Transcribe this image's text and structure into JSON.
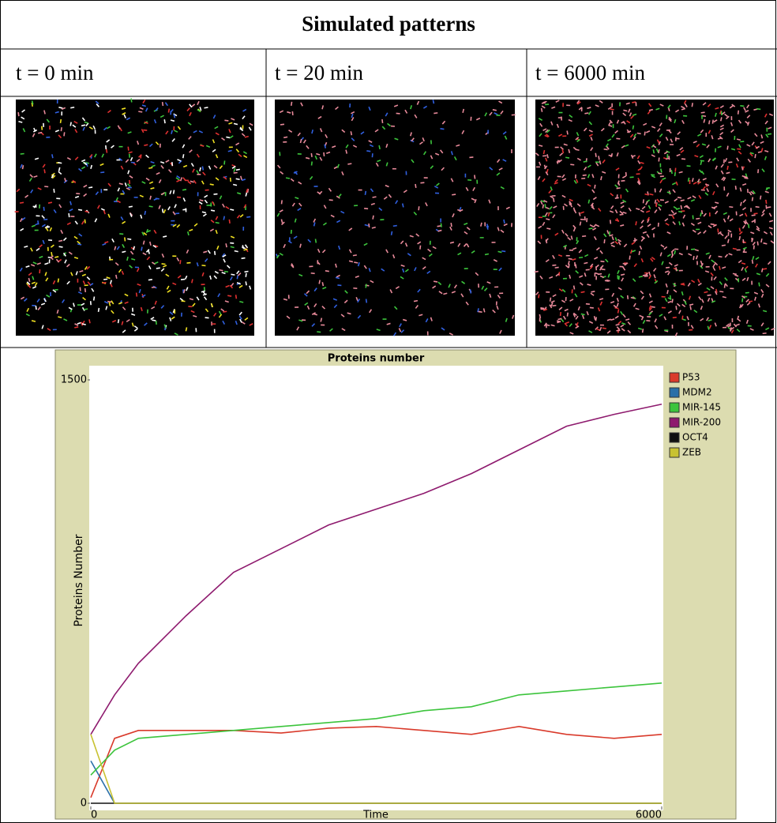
{
  "header": {
    "title": "Simulated patterns"
  },
  "columns": [
    "t = 0 min",
    "t = 20 min",
    "t = 6000 min"
  ],
  "chart_data": {
    "type": "line",
    "title": "Proteins number",
    "x_label": "Time",
    "y_label": "Proteins Number",
    "x": [
      0,
      250,
      500,
      1000,
      1500,
      2000,
      2500,
      3000,
      3500,
      4000,
      4500,
      5000,
      5500,
      6000
    ],
    "series": [
      {
        "name": "P53",
        "color": "#d93a2b",
        "values": [
          20,
          230,
          258,
          258,
          258,
          249,
          266,
          272,
          258,
          244,
          272,
          244,
          230,
          244
        ]
      },
      {
        "name": "MDM2",
        "color": "#2a6fa8",
        "values": [
          150,
          0,
          0,
          0,
          0,
          0,
          0,
          0,
          0,
          0,
          0,
          0,
          0,
          0
        ]
      },
      {
        "name": "MIR-145",
        "color": "#3cc43c",
        "values": [
          100,
          188,
          230,
          244,
          258,
          272,
          286,
          300,
          328,
          342,
          384,
          398,
          412,
          426
        ]
      },
      {
        "name": "MIR-200",
        "color": "#8e1a6e",
        "values": [
          244,
          384,
          496,
          664,
          818,
          902,
          986,
          1042,
          1098,
          1168,
          1252,
          1336,
          1378,
          1414
        ]
      },
      {
        "name": "OCT4",
        "color": "#111111",
        "values": [
          0,
          0,
          0,
          0,
          0,
          0,
          0,
          0,
          0,
          0,
          0,
          0,
          0,
          0
        ]
      },
      {
        "name": "ZEB",
        "color": "#c8c232",
        "values": [
          244,
          0,
          0,
          0,
          0,
          0,
          0,
          0,
          0,
          0,
          0,
          0,
          0,
          0
        ]
      }
    ],
    "xlim": [
      0,
      6000
    ],
    "ylim": [
      0,
      1500
    ],
    "xticks": [
      0,
      6000
    ],
    "yticks": [
      0,
      1500
    ],
    "legend": "right"
  }
}
